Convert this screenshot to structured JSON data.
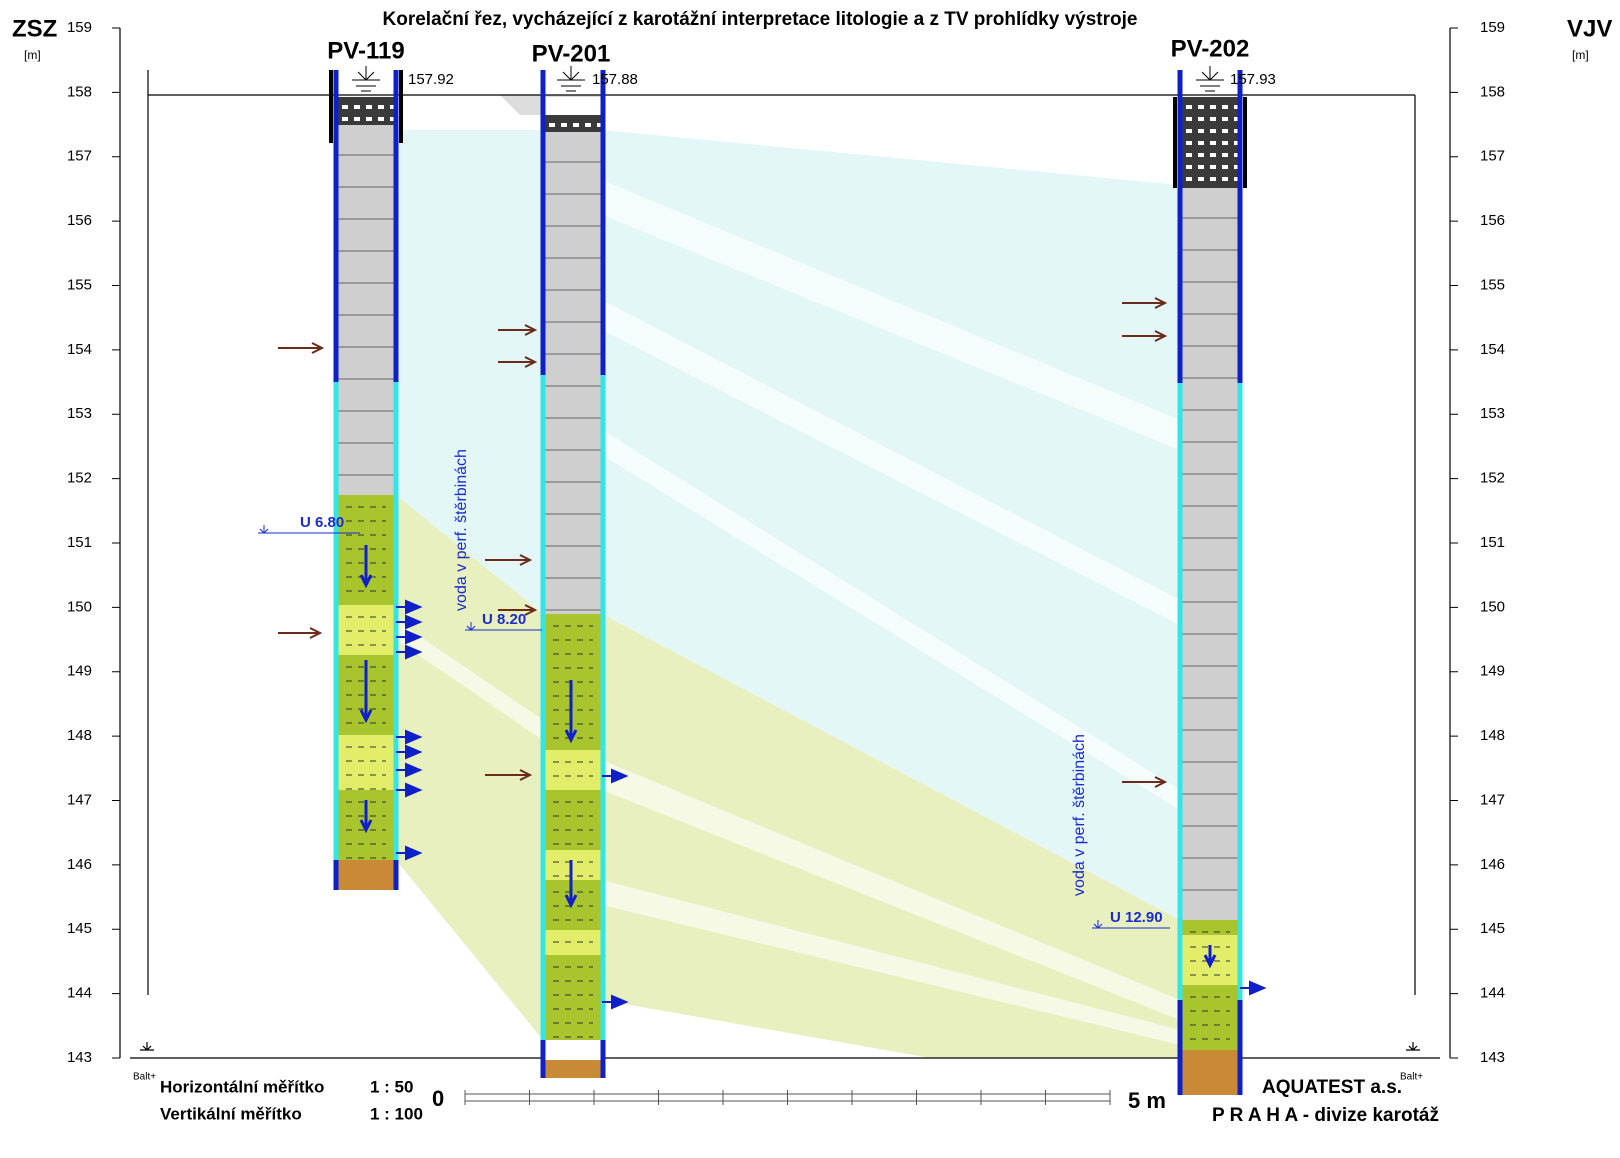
{
  "header": {
    "title": "Korelační řez, vycházející z karotážní interpretace litologie a z TV prohlídky výstroje",
    "left_direction": "ZSZ",
    "right_direction": "VJV",
    "left_unit": "[m]",
    "right_unit": "[m]"
  },
  "axis": {
    "ticks": [
      159,
      158,
      157,
      156,
      155,
      154,
      153,
      152,
      151,
      150,
      149,
      148,
      147,
      146,
      145,
      144,
      143
    ]
  },
  "wells": [
    {
      "name": "PV-119",
      "head": "157.92",
      "water_level": "U 6.80"
    },
    {
      "name": "PV-201",
      "head": "157.88",
      "water_level": "U 8.20"
    },
    {
      "name": "PV-202",
      "head": "157.93",
      "water_level": "U 12.90"
    }
  ],
  "notes": [
    "voda v perf. štěrbinách",
    "voda v perf. štěrbinách"
  ],
  "datum": [
    "Balt+",
    "Balt+"
  ],
  "footer": {
    "horizontal_scale_label": "Horizontální měřítko",
    "horizontal_scale": "1 : 50",
    "vertical_scale_label": "Vertikální měřítko",
    "vertical_scale": "1 : 100",
    "bar_start": "0",
    "bar_end": "5 m",
    "company": "AQUATEST  a.s.",
    "division": "P R A H A - divize karotáž"
  }
}
